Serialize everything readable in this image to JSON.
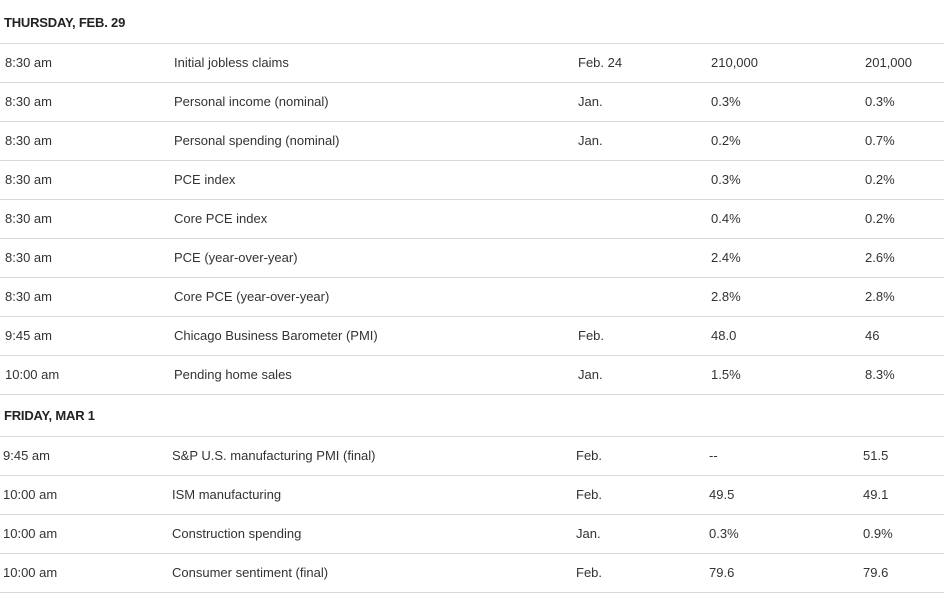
{
  "days": [
    {
      "header": "THURSDAY, FEB. 29",
      "rows": [
        {
          "time": "8:30 am",
          "event": "Initial jobless claims",
          "period": "Feb. 24",
          "forecast": "210,000",
          "previous": "201,000"
        },
        {
          "time": "8:30 am",
          "event": "Personal income (nominal)",
          "period": "Jan.",
          "forecast": "0.3%",
          "previous": "0.3%"
        },
        {
          "time": "8:30 am",
          "event": "Personal spending (nominal)",
          "period": "Jan.",
          "forecast": "0.2%",
          "previous": "0.7%"
        },
        {
          "time": "8:30 am",
          "event": "PCE index",
          "period": "",
          "forecast": "0.3%",
          "previous": "0.2%"
        },
        {
          "time": "8:30 am",
          "event": "Core PCE index",
          "period": "",
          "forecast": "0.4%",
          "previous": "0.2%"
        },
        {
          "time": "8:30 am",
          "event": "PCE (year-over-year)",
          "period": "",
          "forecast": "2.4%",
          "previous": "2.6%"
        },
        {
          "time": "8:30 am",
          "event": "Core PCE (year-over-year)",
          "period": "",
          "forecast": "2.8%",
          "previous": "2.8%"
        },
        {
          "time": "9:45 am",
          "event": "Chicago Business Barometer (PMI)",
          "period": "Feb.",
          "forecast": "48.0",
          "previous": "46"
        },
        {
          "time": "10:00 am",
          "event": "Pending home sales",
          "period": "Jan.",
          "forecast": "1.5%",
          "previous": "8.3%"
        }
      ]
    },
    {
      "header": "FRIDAY, MAR 1",
      "rows": [
        {
          "time": "9:45 am",
          "event": "S&P U.S. manufacturing PMI (final)",
          "period": "Feb.",
          "forecast": "--",
          "previous": "51.5"
        },
        {
          "time": "10:00 am",
          "event": "ISM manufacturing",
          "period": "Feb.",
          "forecast": "49.5",
          "previous": "49.1"
        },
        {
          "time": "10:00 am",
          "event": "Construction spending",
          "period": "Jan.",
          "forecast": "0.3%",
          "previous": "0.9%"
        },
        {
          "time": "10:00 am",
          "event": "Consumer sentiment (final)",
          "period": "Feb.",
          "forecast": "79.6",
          "previous": "79.6"
        }
      ]
    }
  ]
}
